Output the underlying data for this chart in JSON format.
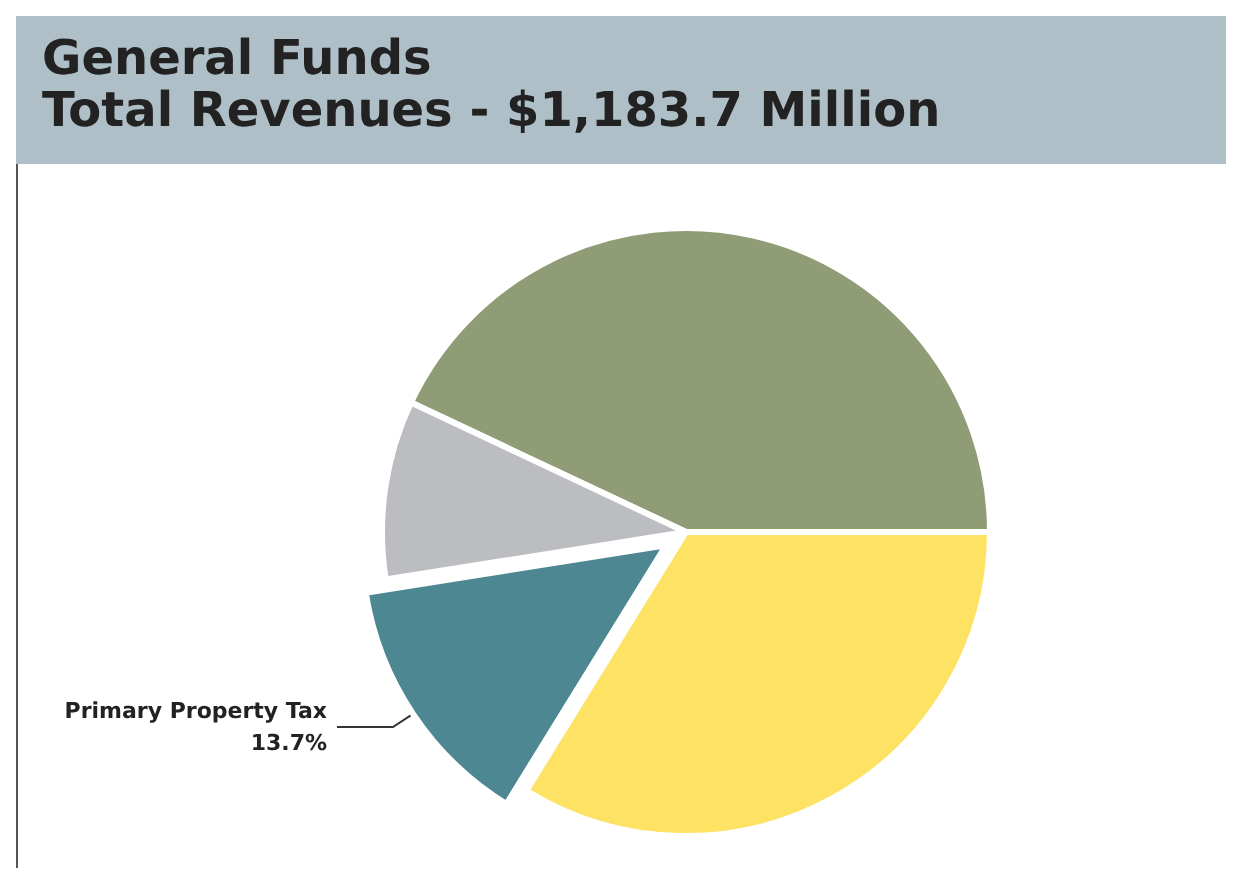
{
  "chart_data": {
    "type": "pie",
    "title": "General Funds",
    "subtitle": "Total Revenues - $1,183.7 Million",
    "categories": [
      null,
      null,
      "Primary Property Tax",
      null
    ],
    "values": [
      43,
      9.5,
      13.7,
      33.8
    ],
    "colors": [
      "#8f9c76",
      "#bcbdc1",
      "#4c8792",
      "#fde264"
    ],
    "value_labels": [
      null,
      null,
      "13.7%",
      null
    ],
    "legend": false
  }
}
